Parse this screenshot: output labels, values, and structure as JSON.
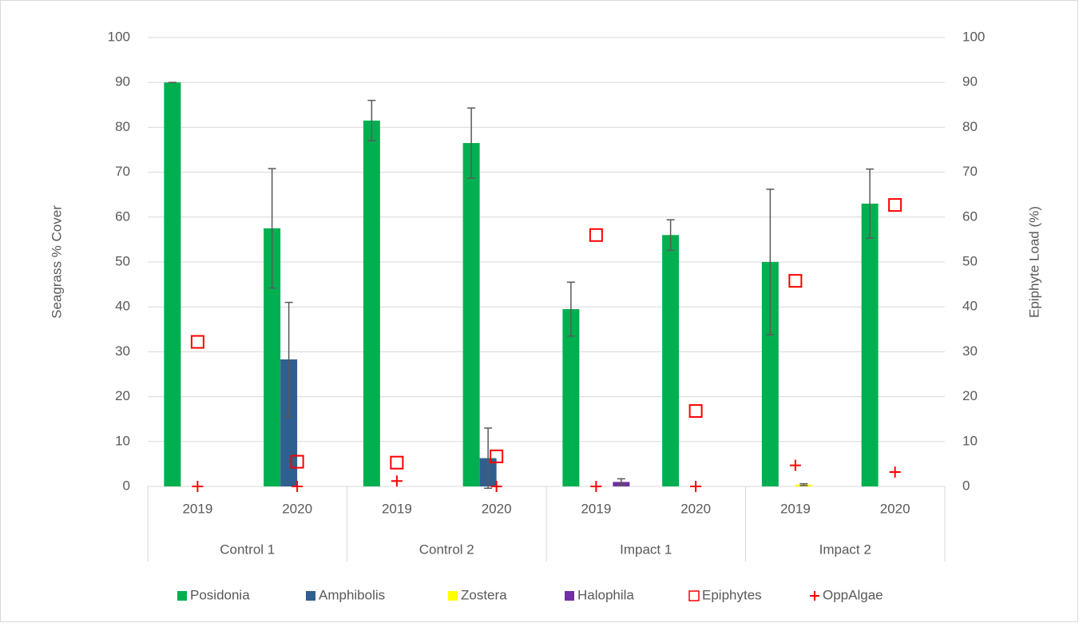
{
  "chart_data": {
    "type": "bar",
    "y_label": "Seagrass % Cover",
    "y2_label": "Epiphyte Load (%)",
    "categories": [
      "2019",
      "2020",
      "2019",
      "2020",
      "2019",
      "2020",
      "2019",
      "2020"
    ],
    "groups": [
      "Control 1",
      "Control 2",
      "Impact 1",
      "Impact 2"
    ],
    "ylim": [
      0,
      100
    ],
    "yticks": [
      0,
      10,
      20,
      30,
      40,
      50,
      60,
      70,
      80,
      90,
      100
    ],
    "y2lim": [
      0,
      100
    ],
    "y2ticks": [
      0,
      10,
      20,
      30,
      40,
      50,
      60,
      70,
      80,
      90,
      100
    ],
    "grid": true,
    "legend": "bottom",
    "series": [
      {
        "name": "Posidonia",
        "type": "bar",
        "color": "#00b050",
        "values": [
          90,
          57.5,
          81.5,
          76.5,
          39.5,
          56,
          50,
          63
        ],
        "errors": [
          0,
          13.3,
          4.5,
          7.8,
          6,
          3.4,
          16.2,
          7.7
        ]
      },
      {
        "name": "Amphibolis",
        "type": "bar",
        "color": "#2e5f8f",
        "values": [
          0,
          28.3,
          0,
          6.3,
          0,
          0,
          0,
          0
        ],
        "errors": [
          null,
          12.7,
          null,
          6.7,
          null,
          null,
          null,
          null
        ]
      },
      {
        "name": "Zostera",
        "type": "bar",
        "color": "#ffff00",
        "values": [
          0,
          0,
          0,
          0,
          0,
          0,
          0.4,
          0
        ],
        "errors": [
          null,
          null,
          null,
          null,
          null,
          null,
          0.2,
          null
        ]
      },
      {
        "name": "Halophila",
        "type": "bar",
        "color": "#7030a0",
        "values": [
          0,
          0,
          0,
          0,
          1,
          0,
          0,
          0
        ],
        "errors": [
          null,
          null,
          null,
          null,
          0.7,
          null,
          null,
          null
        ]
      },
      {
        "name": "Epiphytes",
        "type": "square",
        "color": "#ff0000",
        "axis": "y2",
        "values": [
          32.2,
          5.5,
          5.3,
          6.7,
          56,
          16.8,
          45.8,
          62.7
        ]
      },
      {
        "name": "OppAlgae",
        "type": "plus",
        "color": "#ff0000",
        "axis": "y2",
        "values": [
          0,
          0,
          1.2,
          0,
          0,
          0,
          4.7,
          3.2
        ]
      }
    ]
  }
}
